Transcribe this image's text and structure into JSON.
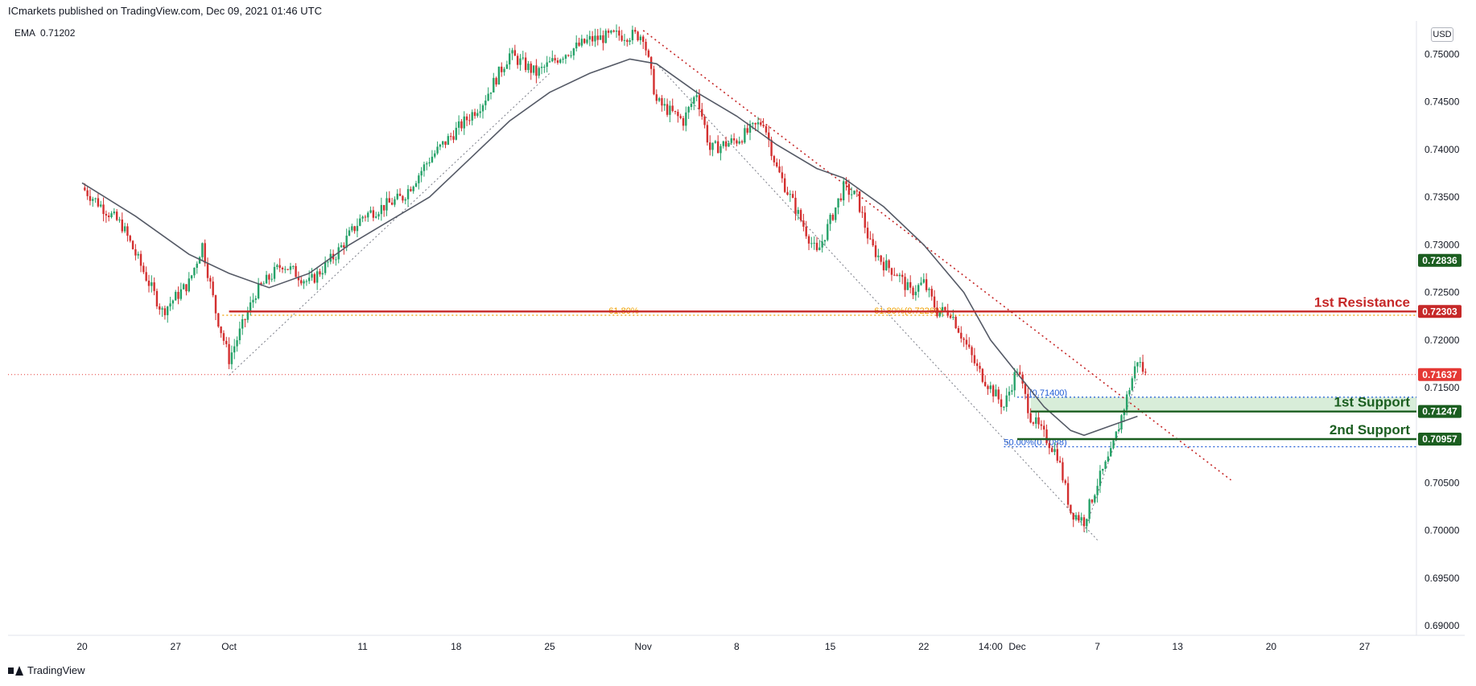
{
  "header": {
    "published_by": "ICmarkets published on TradingView.com, Dec 09, 2021 01:46 UTC"
  },
  "indicator": {
    "name": "EMA",
    "value": "0.71202"
  },
  "currency": "USD",
  "brand": {
    "name": "TradingView"
  },
  "colors": {
    "bull": "#26a269",
    "bear": "#d32f2f",
    "ema": "#555a66",
    "resistance": "#c62828",
    "support": "#1b5e20",
    "fib": "#f0a000",
    "trend": "#c62828",
    "current": "#e53935"
  },
  "chart_data": {
    "type": "candlestick",
    "title": "",
    "ylim": [
      0.689,
      0.7535
    ],
    "y_ticks": [
      0.75,
      0.745,
      0.74,
      0.735,
      0.73,
      0.725,
      0.72,
      0.715,
      0.705,
      0.7,
      0.695,
      0.69
    ],
    "y_tick_labels": [
      "0.75000",
      "0.74500",
      "0.74000",
      "0.73500",
      "0.73000",
      "0.72500",
      "0.72000",
      "0.71500",
      "0.70500",
      "0.70000",
      "0.69500",
      "0.69000"
    ],
    "x_ticks": [
      {
        "label": "20",
        "day": 0
      },
      {
        "label": "27",
        "day": 7
      },
      {
        "label": "Oct",
        "day": 11
      },
      {
        "label": "11",
        "day": 21
      },
      {
        "label": "18",
        "day": 28
      },
      {
        "label": "25",
        "day": 35
      },
      {
        "label": "Nov",
        "day": 42
      },
      {
        "label": "8",
        "day": 49
      },
      {
        "label": "15",
        "day": 56
      },
      {
        "label": "22",
        "day": 63
      },
      {
        "label": "14:00",
        "day": 68
      },
      {
        "label": "Dec",
        "day": 70
      },
      {
        "label": "7",
        "day": 76
      },
      {
        "label": "13",
        "day": 82
      },
      {
        "label": "20",
        "day": 89
      },
      {
        "label": "27",
        "day": 96
      }
    ],
    "price_path": [
      [
        0,
        0.736
      ],
      [
        3,
        0.732
      ],
      [
        5,
        0.726
      ],
      [
        6,
        0.723
      ],
      [
        8,
        0.726
      ],
      [
        9,
        0.73
      ],
      [
        10,
        0.723
      ],
      [
        11,
        0.718
      ],
      [
        13,
        0.725
      ],
      [
        15,
        0.728
      ],
      [
        17,
        0.726
      ],
      [
        19,
        0.729
      ],
      [
        21,
        0.733
      ],
      [
        24,
        0.735
      ],
      [
        26,
        0.739
      ],
      [
        28,
        0.742
      ],
      [
        30,
        0.745
      ],
      [
        32,
        0.75
      ],
      [
        34,
        0.748
      ],
      [
        36,
        0.75
      ],
      [
        38,
        0.7515
      ],
      [
        40,
        0.752
      ],
      [
        42,
        0.752
      ],
      [
        43,
        0.745
      ],
      [
        45,
        0.743
      ],
      [
        46,
        0.746
      ],
      [
        47,
        0.74
      ],
      [
        49,
        0.741
      ],
      [
        51,
        0.743
      ],
      [
        52,
        0.738
      ],
      [
        54,
        0.732
      ],
      [
        55,
        0.729
      ],
      [
        57,
        0.736
      ],
      [
        58,
        0.735
      ],
      [
        59,
        0.73
      ],
      [
        60,
        0.728
      ],
      [
        61,
        0.727
      ],
      [
        62,
        0.725
      ],
      [
        63,
        0.726
      ],
      [
        64,
        0.723
      ],
      [
        65,
        0.723
      ],
      [
        66,
        0.72
      ],
      [
        67,
        0.717
      ],
      [
        68,
        0.715
      ],
      [
        69,
        0.713
      ],
      [
        70,
        0.717
      ],
      [
        71,
        0.712
      ],
      [
        72,
        0.71
      ],
      [
        73,
        0.708
      ],
      [
        74,
        0.702
      ],
      [
        75,
        0.701
      ],
      [
        76,
        0.705
      ],
      [
        77,
        0.708
      ],
      [
        78,
        0.713
      ],
      [
        79,
        0.718
      ],
      [
        79.6,
        0.7163
      ]
    ],
    "ema_path": [
      [
        0,
        0.7365
      ],
      [
        4,
        0.733
      ],
      [
        8,
        0.729
      ],
      [
        11,
        0.727
      ],
      [
        14,
        0.7255
      ],
      [
        17,
        0.727
      ],
      [
        20,
        0.73
      ],
      [
        23,
        0.7325
      ],
      [
        26,
        0.735
      ],
      [
        29,
        0.739
      ],
      [
        32,
        0.743
      ],
      [
        35,
        0.746
      ],
      [
        38,
        0.748
      ],
      [
        41,
        0.7495
      ],
      [
        43,
        0.749
      ],
      [
        46,
        0.746
      ],
      [
        49,
        0.7435
      ],
      [
        52,
        0.7405
      ],
      [
        55,
        0.738
      ],
      [
        57,
        0.737
      ],
      [
        60,
        0.734
      ],
      [
        63,
        0.73
      ],
      [
        66,
        0.725
      ],
      [
        68,
        0.72
      ],
      [
        70,
        0.7165
      ],
      [
        72,
        0.713
      ],
      [
        74,
        0.7105
      ],
      [
        75,
        0.71
      ],
      [
        77,
        0.711
      ],
      [
        79,
        0.712
      ]
    ],
    "levels": [
      {
        "name": "1st Resistance",
        "price": 0.723,
        "tag": "0.72303",
        "color": "resistance",
        "from_day": 11
      },
      {
        "name": "1st Support",
        "price": 0.7125,
        "tag": "0.71247",
        "color": "support",
        "from_day": 71
      },
      {
        "name": "2nd Support",
        "price": 0.7096,
        "tag": "0.70957",
        "color": "support",
        "from_day": 70
      }
    ],
    "price_tags": [
      {
        "price": 0.72836,
        "tag": "0.72836",
        "color": "support"
      },
      {
        "price": 0.71637,
        "tag": "0.71637",
        "color": "current"
      }
    ],
    "fib_lines": [
      {
        "price": 0.7226,
        "label_a": "61.80%",
        "label_b": "61.80%(0.72260)",
        "from_day": 10.5
      },
      {
        "price": 0.714,
        "label_a": "",
        "label_b": "(0.71400)",
        "from_day": 70
      },
      {
        "price": 0.7088,
        "label_a": "50.00%(0.7088)",
        "label_b": "",
        "from_day": 69
      }
    ],
    "trend_line": {
      "from": [
        42,
        0.7525
      ],
      "to": [
        86,
        0.7053
      ]
    },
    "dotted_guides": [
      {
        "from": [
          11,
          0.7163
        ],
        "to": [
          35,
          0.748
        ]
      },
      {
        "from": [
          43,
          0.749
        ],
        "to": [
          76,
          0.699
        ]
      },
      {
        "from": [
          75,
          0.6998
        ],
        "to": [
          79,
          0.716
        ]
      }
    ],
    "support_zone": {
      "from_price": 0.7125,
      "to_price": 0.714,
      "from_day": 71
    }
  }
}
